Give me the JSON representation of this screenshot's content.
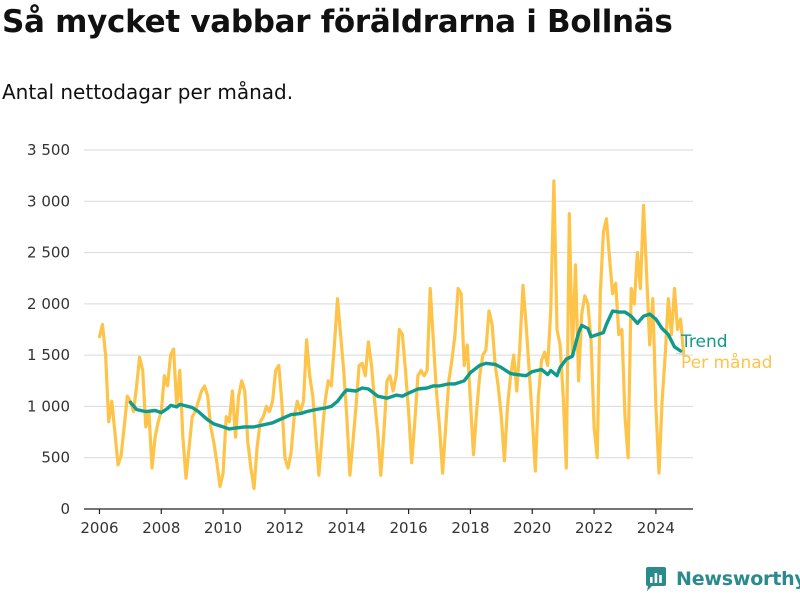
{
  "title": "Så mycket vabbar föräldrarna i Bollnäs",
  "subtitle": "Antal nettodagar per månad.",
  "brand": "Newsworthy",
  "colors": {
    "trend": "#0f9a8d",
    "monthly": "#fdc449",
    "grid": "#d9d9d9",
    "brand": "#2b8a8c"
  },
  "chart_data": {
    "type": "line",
    "ylim": [
      0,
      3500
    ],
    "xlim": [
      2005.5,
      2025.2
    ],
    "y_ticks": [
      0,
      500,
      1000,
      1500,
      2000,
      2500,
      3000,
      3500
    ],
    "y_tick_labels": [
      "0",
      "500",
      "1 000",
      "1 500",
      "2 000",
      "2 500",
      "3 000",
      "3 500"
    ],
    "x_ticks": [
      2006,
      2008,
      2010,
      2012,
      2014,
      2016,
      2018,
      2020,
      2022,
      2024
    ],
    "x_tick_labels": [
      "2006",
      "2008",
      "2010",
      "2012",
      "2014",
      "2016",
      "2018",
      "2020",
      "2022",
      "2024"
    ],
    "grid": "horizontal",
    "legend": "right, at line ends",
    "series": [
      {
        "name": "Per månad",
        "color": "#fdc449",
        "points": [
          [
            2006.0,
            1680
          ],
          [
            2006.1,
            1800
          ],
          [
            2006.2,
            1500
          ],
          [
            2006.3,
            850
          ],
          [
            2006.4,
            1050
          ],
          [
            2006.5,
            750
          ],
          [
            2006.6,
            430
          ],
          [
            2006.7,
            520
          ],
          [
            2006.8,
            800
          ],
          [
            2006.9,
            1100
          ],
          [
            2007.0,
            1050
          ],
          [
            2007.1,
            950
          ],
          [
            2007.2,
            1200
          ],
          [
            2007.3,
            1480
          ],
          [
            2007.4,
            1350
          ],
          [
            2007.5,
            800
          ],
          [
            2007.6,
            950
          ],
          [
            2007.7,
            400
          ],
          [
            2007.8,
            700
          ],
          [
            2007.9,
            850
          ],
          [
            2008.0,
            950
          ],
          [
            2008.1,
            1300
          ],
          [
            2008.2,
            1200
          ],
          [
            2008.3,
            1500
          ],
          [
            2008.4,
            1560
          ],
          [
            2008.5,
            1000
          ],
          [
            2008.6,
            1350
          ],
          [
            2008.7,
            700
          ],
          [
            2008.8,
            300
          ],
          [
            2008.9,
            600
          ],
          [
            2009.0,
            900
          ],
          [
            2009.1,
            950
          ],
          [
            2009.2,
            1050
          ],
          [
            2009.3,
            1150
          ],
          [
            2009.4,
            1200
          ],
          [
            2009.5,
            1100
          ],
          [
            2009.6,
            800
          ],
          [
            2009.7,
            650
          ],
          [
            2009.8,
            450
          ],
          [
            2009.9,
            220
          ],
          [
            2010.0,
            350
          ],
          [
            2010.1,
            900
          ],
          [
            2010.2,
            850
          ],
          [
            2010.3,
            1150
          ],
          [
            2010.4,
            700
          ],
          [
            2010.5,
            1100
          ],
          [
            2010.6,
            1250
          ],
          [
            2010.7,
            1150
          ],
          [
            2010.8,
            650
          ],
          [
            2010.9,
            400
          ],
          [
            2011.0,
            200
          ],
          [
            2011.1,
            600
          ],
          [
            2011.2,
            850
          ],
          [
            2011.3,
            900
          ],
          [
            2011.4,
            1000
          ],
          [
            2011.5,
            950
          ],
          [
            2011.6,
            1050
          ],
          [
            2011.7,
            1350
          ],
          [
            2011.8,
            1400
          ],
          [
            2011.9,
            1050
          ],
          [
            2012.0,
            500
          ],
          [
            2012.1,
            400
          ],
          [
            2012.2,
            550
          ],
          [
            2012.3,
            900
          ],
          [
            2012.4,
            1050
          ],
          [
            2012.5,
            950
          ],
          [
            2012.6,
            1050
          ],
          [
            2012.7,
            1650
          ],
          [
            2012.8,
            1300
          ],
          [
            2012.9,
            1100
          ],
          [
            2013.0,
            700
          ],
          [
            2013.1,
            330
          ],
          [
            2013.2,
            700
          ],
          [
            2013.3,
            1050
          ],
          [
            2013.4,
            1250
          ],
          [
            2013.5,
            1200
          ],
          [
            2013.6,
            1600
          ],
          [
            2013.7,
            2050
          ],
          [
            2013.8,
            1700
          ],
          [
            2013.9,
            1350
          ],
          [
            2014.0,
            900
          ],
          [
            2014.1,
            330
          ],
          [
            2014.2,
            650
          ],
          [
            2014.3,
            1000
          ],
          [
            2014.4,
            1400
          ],
          [
            2014.5,
            1420
          ],
          [
            2014.6,
            1300
          ],
          [
            2014.7,
            1630
          ],
          [
            2014.8,
            1400
          ],
          [
            2014.9,
            1050
          ],
          [
            2015.0,
            750
          ],
          [
            2015.1,
            330
          ],
          [
            2015.2,
            750
          ],
          [
            2015.3,
            1250
          ],
          [
            2015.4,
            1300
          ],
          [
            2015.5,
            1150
          ],
          [
            2015.6,
            1300
          ],
          [
            2015.7,
            1750
          ],
          [
            2015.8,
            1700
          ],
          [
            2015.9,
            1350
          ],
          [
            2016.0,
            950
          ],
          [
            2016.1,
            450
          ],
          [
            2016.2,
            850
          ],
          [
            2016.3,
            1300
          ],
          [
            2016.4,
            1350
          ],
          [
            2016.5,
            1300
          ],
          [
            2016.6,
            1350
          ],
          [
            2016.7,
            2150
          ],
          [
            2016.8,
            1650
          ],
          [
            2016.9,
            1150
          ],
          [
            2017.0,
            800
          ],
          [
            2017.1,
            350
          ],
          [
            2017.2,
            800
          ],
          [
            2017.3,
            1250
          ],
          [
            2017.4,
            1450
          ],
          [
            2017.5,
            1700
          ],
          [
            2017.6,
            2150
          ],
          [
            2017.7,
            2100
          ],
          [
            2017.8,
            1400
          ],
          [
            2017.9,
            1600
          ],
          [
            2018.0,
            1050
          ],
          [
            2018.1,
            530
          ],
          [
            2018.2,
            950
          ],
          [
            2018.3,
            1300
          ],
          [
            2018.4,
            1500
          ],
          [
            2018.5,
            1550
          ],
          [
            2018.6,
            1930
          ],
          [
            2018.7,
            1800
          ],
          [
            2018.8,
            1400
          ],
          [
            2018.9,
            1200
          ],
          [
            2019.0,
            900
          ],
          [
            2019.1,
            470
          ],
          [
            2019.2,
            1000
          ],
          [
            2019.3,
            1300
          ],
          [
            2019.4,
            1500
          ],
          [
            2019.5,
            1150
          ],
          [
            2019.6,
            1600
          ],
          [
            2019.7,
            2180
          ],
          [
            2019.8,
            1800
          ],
          [
            2019.9,
            1350
          ],
          [
            2020.0,
            900
          ],
          [
            2020.1,
            370
          ],
          [
            2020.2,
            1100
          ],
          [
            2020.3,
            1450
          ],
          [
            2020.4,
            1530
          ],
          [
            2020.5,
            1400
          ],
          [
            2020.6,
            1950
          ],
          [
            2020.7,
            3200
          ],
          [
            2020.8,
            1750
          ],
          [
            2020.9,
            1600
          ],
          [
            2021.0,
            1100
          ],
          [
            2021.1,
            400
          ],
          [
            2021.2,
            2880
          ],
          [
            2021.3,
            1500
          ],
          [
            2021.4,
            2380
          ],
          [
            2021.5,
            1250
          ],
          [
            2021.6,
            1900
          ],
          [
            2021.7,
            2080
          ],
          [
            2021.8,
            2000
          ],
          [
            2021.9,
            1650
          ],
          [
            2022.0,
            800
          ],
          [
            2022.1,
            500
          ],
          [
            2022.2,
            2100
          ],
          [
            2022.3,
            2700
          ],
          [
            2022.4,
            2830
          ],
          [
            2022.5,
            2450
          ],
          [
            2022.6,
            2100
          ],
          [
            2022.7,
            2200
          ],
          [
            2022.8,
            1700
          ],
          [
            2022.9,
            1750
          ],
          [
            2023.0,
            900
          ],
          [
            2023.1,
            500
          ],
          [
            2023.2,
            2150
          ],
          [
            2023.3,
            2000
          ],
          [
            2023.4,
            2500
          ],
          [
            2023.5,
            2150
          ],
          [
            2023.6,
            2960
          ],
          [
            2023.7,
            2300
          ],
          [
            2023.8,
            1600
          ],
          [
            2023.9,
            2050
          ],
          [
            2024.0,
            1000
          ],
          [
            2024.1,
            350
          ],
          [
            2024.2,
            1050
          ],
          [
            2024.3,
            1500
          ],
          [
            2024.4,
            2050
          ],
          [
            2024.5,
            1700
          ],
          [
            2024.6,
            2150
          ],
          [
            2024.7,
            1750
          ],
          [
            2024.8,
            1850
          ],
          [
            2024.9,
            1500
          ]
        ]
      },
      {
        "name": "Trend",
        "color": "#0f9a8d",
        "points": [
          [
            2007.0,
            1040
          ],
          [
            2007.2,
            970
          ],
          [
            2007.5,
            950
          ],
          [
            2007.8,
            960
          ],
          [
            2008.0,
            940
          ],
          [
            2008.2,
            980
          ],
          [
            2008.3,
            1010
          ],
          [
            2008.5,
            995
          ],
          [
            2008.6,
            1020
          ],
          [
            2009.0,
            990
          ],
          [
            2009.2,
            950
          ],
          [
            2009.5,
            870
          ],
          [
            2009.7,
            830
          ],
          [
            2010.0,
            800
          ],
          [
            2010.2,
            780
          ],
          [
            2010.4,
            790
          ],
          [
            2010.7,
            800
          ],
          [
            2011.0,
            800
          ],
          [
            2011.3,
            820
          ],
          [
            2011.6,
            840
          ],
          [
            2011.9,
            880
          ],
          [
            2012.2,
            920
          ],
          [
            2012.5,
            930
          ],
          [
            2012.7,
            950
          ],
          [
            2013.0,
            970
          ],
          [
            2013.3,
            985
          ],
          [
            2013.5,
            1000
          ],
          [
            2013.7,
            1050
          ],
          [
            2013.9,
            1130
          ],
          [
            2014.0,
            1160
          ],
          [
            2014.3,
            1150
          ],
          [
            2014.5,
            1180
          ],
          [
            2014.7,
            1170
          ],
          [
            2015.0,
            1100
          ],
          [
            2015.3,
            1080
          ],
          [
            2015.6,
            1110
          ],
          [
            2015.8,
            1100
          ],
          [
            2016.0,
            1130
          ],
          [
            2016.3,
            1170
          ],
          [
            2016.6,
            1180
          ],
          [
            2016.8,
            1200
          ],
          [
            2017.0,
            1200
          ],
          [
            2017.3,
            1220
          ],
          [
            2017.5,
            1220
          ],
          [
            2017.8,
            1250
          ],
          [
            2018.0,
            1330
          ],
          [
            2018.3,
            1400
          ],
          [
            2018.5,
            1420
          ],
          [
            2018.8,
            1410
          ],
          [
            2019.0,
            1380
          ],
          [
            2019.3,
            1320
          ],
          [
            2019.5,
            1310
          ],
          [
            2019.8,
            1300
          ],
          [
            2020.0,
            1340
          ],
          [
            2020.3,
            1360
          ],
          [
            2020.5,
            1310
          ],
          [
            2020.6,
            1350
          ],
          [
            2020.8,
            1300
          ],
          [
            2020.9,
            1380
          ],
          [
            2021.1,
            1460
          ],
          [
            2021.3,
            1490
          ],
          [
            2021.5,
            1720
          ],
          [
            2021.6,
            1790
          ],
          [
            2021.8,
            1760
          ],
          [
            2021.9,
            1680
          ],
          [
            2022.1,
            1700
          ],
          [
            2022.3,
            1720
          ],
          [
            2022.4,
            1800
          ],
          [
            2022.6,
            1930
          ],
          [
            2022.8,
            1920
          ],
          [
            2023.0,
            1920
          ],
          [
            2023.2,
            1880
          ],
          [
            2023.4,
            1810
          ],
          [
            2023.6,
            1880
          ],
          [
            2023.8,
            1900
          ],
          [
            2024.0,
            1850
          ],
          [
            2024.2,
            1760
          ],
          [
            2024.4,
            1700
          ],
          [
            2024.6,
            1580
          ],
          [
            2024.8,
            1540
          ]
        ]
      }
    ]
  }
}
